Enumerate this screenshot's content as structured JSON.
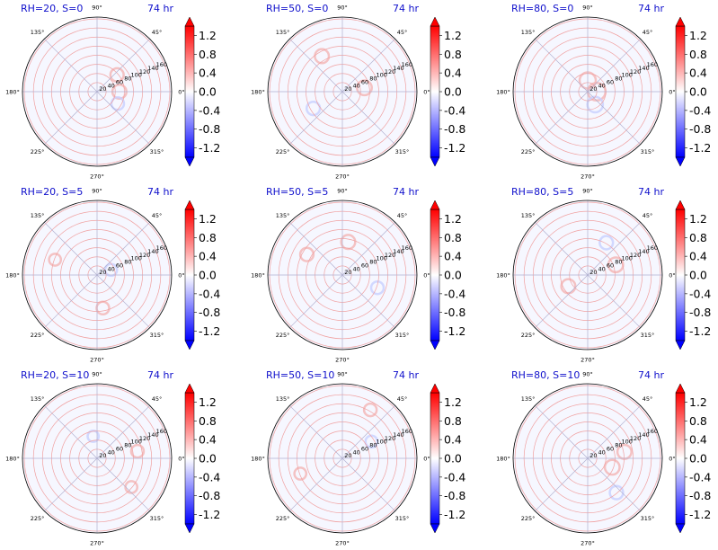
{
  "figure": {
    "rows": 3,
    "cols": 3,
    "colors": {
      "title": "#1010cc",
      "positive": "#ff0000",
      "negative": "#0000ff",
      "ring": "#f0a0a0",
      "spoke": "#b0b0d0"
    }
  },
  "chart_data": [
    {
      "type": "heatmap",
      "projection": "polar",
      "title_left": "RH=20, S=0",
      "title_right": "74 hr",
      "r_ticks": [
        "20",
        "40",
        "60",
        "80",
        "100",
        "120",
        "140",
        "160"
      ],
      "theta_ticks": [
        "0°",
        "45°",
        "90°",
        "135°",
        "180°",
        "225°",
        "270°",
        "315°"
      ],
      "colorbar": {
        "ticks": [
          "1.2",
          "0.8",
          "0.4",
          "0.0",
          "-0.4",
          "-0.8",
          "-1.2"
        ],
        "range": [
          -1.4,
          1.4
        ],
        "extend": "both"
      }
    },
    {
      "type": "heatmap",
      "projection": "polar",
      "title_left": "RH=50, S=0",
      "title_right": "74 hr",
      "r_ticks": [
        "20",
        "40",
        "60",
        "80",
        "100",
        "120",
        "140",
        "160"
      ],
      "theta_ticks": [
        "0°",
        "45°",
        "90°",
        "135°",
        "180°",
        "225°",
        "270°",
        "315°"
      ],
      "colorbar": {
        "ticks": [
          "1.2",
          "0.8",
          "0.4",
          "0.0",
          "-0.4",
          "-0.8",
          "-1.2"
        ],
        "range": [
          -1.4,
          1.4
        ],
        "extend": "both"
      }
    },
    {
      "type": "heatmap",
      "projection": "polar",
      "title_left": "RH=80, S=0",
      "title_right": "74 hr",
      "r_ticks": [
        "20",
        "40",
        "60",
        "80",
        "100",
        "120",
        "140",
        "160"
      ],
      "theta_ticks": [
        "0°",
        "45°",
        "90°",
        "135°",
        "180°",
        "225°",
        "270°",
        "315°"
      ],
      "colorbar": {
        "ticks": [
          "1.2",
          "0.8",
          "0.4",
          "0.0",
          "-0.4",
          "-0.8",
          "-1.2"
        ],
        "range": [
          -1.4,
          1.4
        ],
        "extend": "both"
      }
    },
    {
      "type": "heatmap",
      "projection": "polar",
      "title_left": "RH=20, S=5",
      "title_right": "74 hr",
      "r_ticks": [
        "20",
        "40",
        "60",
        "80",
        "100",
        "120",
        "140",
        "160"
      ],
      "theta_ticks": [
        "0°",
        "45°",
        "90°",
        "135°",
        "180°",
        "225°",
        "270°",
        "315°"
      ],
      "colorbar": {
        "ticks": [
          "1.2",
          "0.8",
          "0.4",
          "0.0",
          "-0.4",
          "-0.8",
          "-1.2"
        ],
        "range": [
          -1.4,
          1.4
        ],
        "extend": "both"
      }
    },
    {
      "type": "heatmap",
      "projection": "polar",
      "title_left": "RH=50, S=5",
      "title_right": "74 hr",
      "r_ticks": [
        "20",
        "40",
        "60",
        "80",
        "100",
        "120",
        "140",
        "160"
      ],
      "theta_ticks": [
        "0°",
        "45°",
        "90°",
        "135°",
        "180°",
        "225°",
        "270°",
        "315°"
      ],
      "colorbar": {
        "ticks": [
          "1.2",
          "0.8",
          "0.4",
          "0.0",
          "-0.4",
          "-0.8",
          "-1.2"
        ],
        "range": [
          -1.4,
          1.4
        ],
        "extend": "both"
      }
    },
    {
      "type": "heatmap",
      "projection": "polar",
      "title_left": "RH=80, S=5",
      "title_right": "74 hr",
      "r_ticks": [
        "20",
        "40",
        "60",
        "80",
        "100",
        "120",
        "140",
        "160"
      ],
      "theta_ticks": [
        "0°",
        "45°",
        "90°",
        "135°",
        "180°",
        "225°",
        "270°",
        "315°"
      ],
      "colorbar": {
        "ticks": [
          "1.2",
          "0.8",
          "0.4",
          "0.0",
          "-0.4",
          "-0.8",
          "-1.2"
        ],
        "range": [
          -1.4,
          1.4
        ],
        "extend": "both"
      }
    },
    {
      "type": "heatmap",
      "projection": "polar",
      "title_left": "RH=20, S=10",
      "title_right": "74 hr",
      "r_ticks": [
        "20",
        "40",
        "60",
        "80",
        "100",
        "120",
        "140",
        "160"
      ],
      "theta_ticks": [
        "0°",
        "45°",
        "90°",
        "135°",
        "180°",
        "225°",
        "270°",
        "315°"
      ],
      "colorbar": {
        "ticks": [
          "1.2",
          "0.8",
          "0.4",
          "0.0",
          "-0.4",
          "-0.8",
          "-1.2"
        ],
        "range": [
          -1.4,
          1.4
        ],
        "extend": "both"
      }
    },
    {
      "type": "heatmap",
      "projection": "polar",
      "title_left": "RH=50, S=10",
      "title_right": "74 hr",
      "r_ticks": [
        "20",
        "40",
        "60",
        "80",
        "100",
        "120",
        "140",
        "160"
      ],
      "theta_ticks": [
        "0°",
        "45°",
        "90°",
        "135°",
        "180°",
        "225°",
        "270°",
        "315°"
      ],
      "colorbar": {
        "ticks": [
          "1.2",
          "0.8",
          "0.4",
          "0.0",
          "-0.4",
          "-0.8",
          "-1.2"
        ],
        "range": [
          -1.4,
          1.4
        ],
        "extend": "both"
      }
    },
    {
      "type": "heatmap",
      "projection": "polar",
      "title_left": "RH=80, S=10",
      "title_right": "74 hr",
      "r_ticks": [
        "20",
        "40",
        "60",
        "80",
        "100",
        "120",
        "140",
        "160"
      ],
      "theta_ticks": [
        "0°",
        "45°",
        "90°",
        "135°",
        "180°",
        "225°",
        "270°",
        "315°"
      ],
      "colorbar": {
        "ticks": [
          "1.2",
          "0.8",
          "0.4",
          "0.0",
          "-0.4",
          "-0.8",
          "-1.2"
        ],
        "range": [
          -1.4,
          1.4
        ],
        "extend": "both"
      }
    }
  ]
}
